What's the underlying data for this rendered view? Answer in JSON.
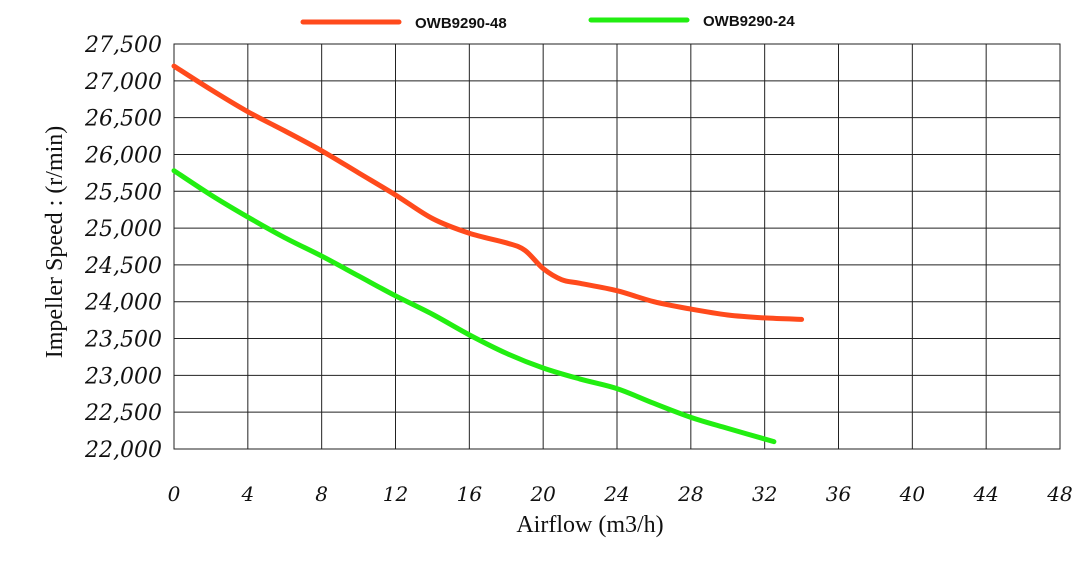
{
  "chart_data": {
    "type": "line",
    "xlabel": "Airflow (m3/h)",
    "ylabel": "Impeller  Speed :  (r/min)",
    "xlim": [
      0,
      48
    ],
    "ylim": [
      22000,
      27500
    ],
    "x_ticks": [
      "0",
      "4",
      "8",
      "12",
      "16",
      "20",
      "24",
      "28",
      "32",
      "36",
      "40",
      "44",
      "48"
    ],
    "y_ticks": [
      "27,500",
      "27,000",
      "26,500",
      "26,000",
      "25,500",
      "25,000",
      "24,500",
      "24,000",
      "23,500",
      "23,000",
      "22,500",
      "22,000"
    ],
    "grid": true,
    "legend_position": "top",
    "series": [
      {
        "name": "OWB9290-48",
        "color": "#ff4a1c",
        "points": [
          [
            0,
            27200
          ],
          [
            2,
            26880
          ],
          [
            4,
            26580
          ],
          [
            6,
            26320
          ],
          [
            8,
            26050
          ],
          [
            10,
            25750
          ],
          [
            12,
            25450
          ],
          [
            14,
            25130
          ],
          [
            16,
            24930
          ],
          [
            18,
            24800
          ],
          [
            19,
            24700
          ],
          [
            20,
            24450
          ],
          [
            21,
            24300
          ],
          [
            22,
            24250
          ],
          [
            24,
            24150
          ],
          [
            26,
            24000
          ],
          [
            28,
            23900
          ],
          [
            30,
            23820
          ],
          [
            32,
            23780
          ],
          [
            34,
            23760
          ]
        ]
      },
      {
        "name": "OWB9290-24",
        "color": "#22ee11",
        "points": [
          [
            0,
            25780
          ],
          [
            2,
            25450
          ],
          [
            4,
            25150
          ],
          [
            6,
            24870
          ],
          [
            8,
            24620
          ],
          [
            10,
            24350
          ],
          [
            12,
            24080
          ],
          [
            14,
            23830
          ],
          [
            16,
            23550
          ],
          [
            18,
            23300
          ],
          [
            20,
            23100
          ],
          [
            22,
            22950
          ],
          [
            24,
            22820
          ],
          [
            26,
            22620
          ],
          [
            28,
            22430
          ],
          [
            30,
            22280
          ],
          [
            32.5,
            22100
          ]
        ]
      }
    ]
  }
}
